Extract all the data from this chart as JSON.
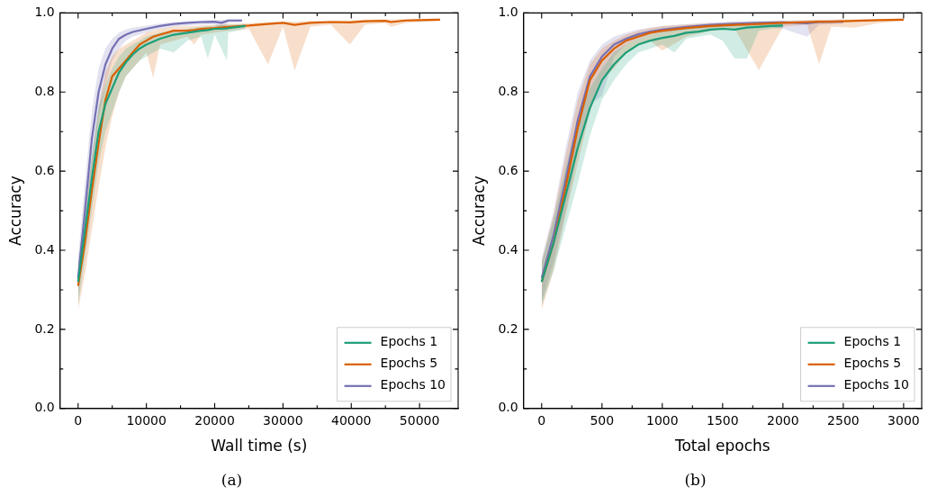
{
  "chart_data": [
    {
      "type": "line",
      "xlabel": "Wall time (s)",
      "ylabel": "Accuracy",
      "annotations": [
        "(a)"
      ],
      "legend": "bottom right",
      "grid": false,
      "line_style": "solid",
      "marker": "none",
      "xlim": [
        -2650,
        55650
      ],
      "ylim": [
        0,
        1
      ],
      "xticks": [
        0,
        {
          "value": 5000,
          "label": null
        },
        10000,
        {
          "value": 15000,
          "label": null
        },
        20000,
        {
          "value": 25000,
          "label": null
        },
        30000,
        {
          "value": 35000,
          "label": null
        },
        40000,
        {
          "value": 45000,
          "label": null
        },
        50000
      ],
      "yticks": [
        {
          "value": 0,
          "label": "0.0"
        },
        {
          "value": 0.1,
          "label": null
        },
        0.2,
        {
          "value": 0.3,
          "label": null
        },
        0.4,
        {
          "value": 0.5,
          "label": null
        },
        0.6,
        {
          "value": 0.7,
          "label": null
        },
        0.8,
        {
          "value": 0.9,
          "label": null
        },
        {
          "value": 1,
          "label": "1.0"
        }
      ],
      "series": [
        {
          "name": "Epochs 1",
          "color": "#1b9e77",
          "x": [
            0,
            1000,
            2000,
            3000,
            4000,
            5000,
            6000,
            7000,
            8000,
            9000,
            10000,
            12000,
            14000,
            16000,
            18000,
            19000,
            20000,
            21800,
            22000,
            24500
          ],
          "values": [
            0.32,
            0.45,
            0.58,
            0.7,
            0.77,
            0.81,
            0.85,
            0.875,
            0.895,
            0.91,
            0.92,
            0.935,
            0.945,
            0.95,
            0.955,
            0.957,
            0.96,
            0.961,
            0.962,
            0.967
          ],
          "lower": [
            0.26,
            0.38,
            0.5,
            0.62,
            0.7,
            0.75,
            0.8,
            0.84,
            0.86,
            0.88,
            0.89,
            0.91,
            0.9,
            0.93,
            0.94,
            0.885,
            0.945,
            0.88,
            0.95,
            0.96
          ],
          "upper": [
            0.37,
            0.5,
            0.64,
            0.76,
            0.82,
            0.86,
            0.89,
            0.91,
            0.92,
            0.93,
            0.94,
            0.95,
            0.955,
            0.96,
            0.965,
            0.966,
            0.968,
            0.97,
            0.97,
            0.972
          ]
        },
        {
          "name": "Epochs 5",
          "color": "#d95f02",
          "x": [
            0,
            1000,
            2000,
            3000,
            4000,
            5000,
            6000,
            7000,
            8000,
            9000,
            10000,
            11000,
            12000,
            14000,
            16000,
            17000,
            18000,
            20000,
            22000,
            25000,
            27800,
            30000,
            31700,
            34000,
            37000,
            39800,
            42000,
            45000,
            45800,
            48000,
            50000,
            53000
          ],
          "values": [
            0.31,
            0.42,
            0.55,
            0.67,
            0.78,
            0.84,
            0.86,
            0.88,
            0.9,
            0.92,
            0.93,
            0.94,
            0.945,
            0.955,
            0.955,
            0.957,
            0.96,
            0.962,
            0.965,
            0.968,
            0.972,
            0.975,
            0.97,
            0.975,
            0.977,
            0.976,
            0.979,
            0.98,
            0.977,
            0.981,
            0.982,
            0.983
          ],
          "lower": [
            0.25,
            0.34,
            0.45,
            0.56,
            0.66,
            0.74,
            0.8,
            0.84,
            0.86,
            0.88,
            0.9,
            0.836,
            0.92,
            0.93,
            0.94,
            0.92,
            0.945,
            0.95,
            0.955,
            0.96,
            0.87,
            0.965,
            0.854,
            0.965,
            0.97,
            0.92,
            0.97,
            0.975,
            0.965,
            0.975,
            0.977,
            0.98
          ],
          "upper": [
            0.36,
            0.5,
            0.63,
            0.76,
            0.85,
            0.89,
            0.91,
            0.92,
            0.93,
            0.94,
            0.95,
            0.955,
            0.96,
            0.965,
            0.966,
            0.967,
            0.968,
            0.97,
            0.972,
            0.974,
            0.977,
            0.979,
            0.978,
            0.98,
            0.981,
            0.981,
            0.983,
            0.984,
            0.983,
            0.985,
            0.985,
            0.986
          ]
        },
        {
          "name": "Epochs 10",
          "color": "#7570b3",
          "x": [
            0,
            1000,
            2000,
            3000,
            4000,
            5000,
            6000,
            7000,
            8000,
            10000,
            12000,
            14000,
            16000,
            18000,
            20000,
            21000,
            22000,
            24000
          ],
          "values": [
            0.33,
            0.5,
            0.68,
            0.8,
            0.87,
            0.91,
            0.935,
            0.945,
            0.952,
            0.96,
            0.967,
            0.972,
            0.975,
            0.977,
            0.978,
            0.975,
            0.981,
            0.981
          ],
          "lower": [
            0.28,
            0.43,
            0.6,
            0.73,
            0.82,
            0.88,
            0.91,
            0.93,
            0.94,
            0.95,
            0.96,
            0.965,
            0.968,
            0.97,
            0.972,
            0.955,
            0.975,
            0.977
          ],
          "upper": [
            0.38,
            0.57,
            0.75,
            0.86,
            0.91,
            0.935,
            0.95,
            0.958,
            0.963,
            0.968,
            0.973,
            0.977,
            0.979,
            0.981,
            0.982,
            0.982,
            0.984,
            0.984
          ]
        }
      ]
    },
    {
      "type": "line",
      "xlabel": "Total epochs",
      "ylabel": "Accuracy",
      "annotations": [
        "(b)"
      ],
      "legend": "bottom right",
      "grid": false,
      "line_style": "solid",
      "marker": "none",
      "xlim": [
        -150,
        3150
      ],
      "ylim": [
        0,
        1
      ],
      "xticks": [
        0,
        {
          "value": 250,
          "label": null
        },
        500,
        {
          "value": 750,
          "label": null
        },
        1000,
        {
          "value": 1250,
          "label": null
        },
        1500,
        {
          "value": 1750,
          "label": null
        },
        2000,
        {
          "value": 2250,
          "label": null
        },
        2500,
        {
          "value": 2750,
          "label": null
        },
        3000
      ],
      "yticks": [
        {
          "value": 0,
          "label": "0.0"
        },
        {
          "value": 0.1,
          "label": null
        },
        0.2,
        {
          "value": 0.3,
          "label": null
        },
        0.4,
        {
          "value": 0.5,
          "label": null
        },
        0.6,
        {
          "value": 0.7,
          "label": null
        },
        0.8,
        {
          "value": 0.9,
          "label": null
        },
        {
          "value": 1,
          "label": "1.0"
        }
      ],
      "series": [
        {
          "name": "Epochs 1",
          "color": "#1b9e77",
          "x": [
            0,
            100,
            200,
            300,
            400,
            500,
            600,
            700,
            800,
            900,
            1000,
            1100,
            1200,
            1300,
            1400,
            1500,
            1600,
            1700,
            1800,
            1900,
            2000
          ],
          "values": [
            0.32,
            0.42,
            0.54,
            0.66,
            0.76,
            0.83,
            0.87,
            0.9,
            0.92,
            0.93,
            0.937,
            0.942,
            0.95,
            0.953,
            0.958,
            0.96,
            0.958,
            0.963,
            0.965,
            0.967,
            0.968
          ],
          "lower": [
            0.26,
            0.35,
            0.46,
            0.57,
            0.69,
            0.78,
            0.83,
            0.87,
            0.9,
            0.91,
            0.92,
            0.9,
            0.935,
            0.94,
            0.945,
            0.93,
            0.885,
            0.885,
            0.955,
            0.96,
            0.962
          ],
          "upper": [
            0.37,
            0.48,
            0.61,
            0.73,
            0.81,
            0.86,
            0.9,
            0.92,
            0.935,
            0.945,
            0.952,
            0.958,
            0.962,
            0.965,
            0.968,
            0.97,
            0.972,
            0.973,
            0.974,
            0.975,
            0.975
          ]
        },
        {
          "name": "Epochs 5",
          "color": "#d95f02",
          "x": [
            0,
            100,
            200,
            300,
            400,
            500,
            600,
            700,
            800,
            900,
            1000,
            1200,
            1400,
            1600,
            1800,
            2000,
            2200,
            2300,
            2400,
            2600,
            2800,
            3000
          ],
          "values": [
            0.32,
            0.42,
            0.56,
            0.71,
            0.83,
            0.88,
            0.91,
            0.93,
            0.94,
            0.95,
            0.955,
            0.962,
            0.967,
            0.97,
            0.972,
            0.975,
            0.977,
            0.978,
            0.978,
            0.98,
            0.982,
            0.983
          ],
          "lower": [
            0.25,
            0.35,
            0.49,
            0.62,
            0.75,
            0.83,
            0.86,
            0.9,
            0.92,
            0.93,
            0.905,
            0.94,
            0.955,
            0.96,
            0.855,
            0.965,
            0.97,
            0.87,
            0.965,
            0.963,
            0.975,
            0.98
          ],
          "upper": [
            0.37,
            0.49,
            0.64,
            0.78,
            0.87,
            0.91,
            0.93,
            0.945,
            0.955,
            0.962,
            0.967,
            0.971,
            0.974,
            0.977,
            0.978,
            0.98,
            0.982,
            0.983,
            0.983,
            0.984,
            0.985,
            0.986
          ]
        },
        {
          "name": "Epochs 10",
          "color": "#7570b3",
          "x": [
            0,
            100,
            200,
            300,
            400,
            500,
            600,
            700,
            800,
            900,
            1000,
            1200,
            1400,
            1600,
            1800,
            2000,
            2200,
            2300,
            2500
          ],
          "values": [
            0.33,
            0.44,
            0.58,
            0.73,
            0.84,
            0.89,
            0.92,
            0.935,
            0.946,
            0.953,
            0.958,
            0.965,
            0.97,
            0.973,
            0.975,
            0.976,
            0.974,
            0.977,
            0.978
          ],
          "lower": [
            0.27,
            0.37,
            0.5,
            0.65,
            0.77,
            0.79,
            0.89,
            0.92,
            0.935,
            0.945,
            0.95,
            0.958,
            0.963,
            0.966,
            0.968,
            0.96,
            0.94,
            0.97,
            0.973
          ],
          "upper": [
            0.38,
            0.5,
            0.66,
            0.8,
            0.88,
            0.92,
            0.94,
            0.95,
            0.958,
            0.963,
            0.967,
            0.972,
            0.976,
            0.979,
            0.98,
            0.981,
            0.981,
            0.982,
            0.983
          ]
        }
      ]
    }
  ]
}
